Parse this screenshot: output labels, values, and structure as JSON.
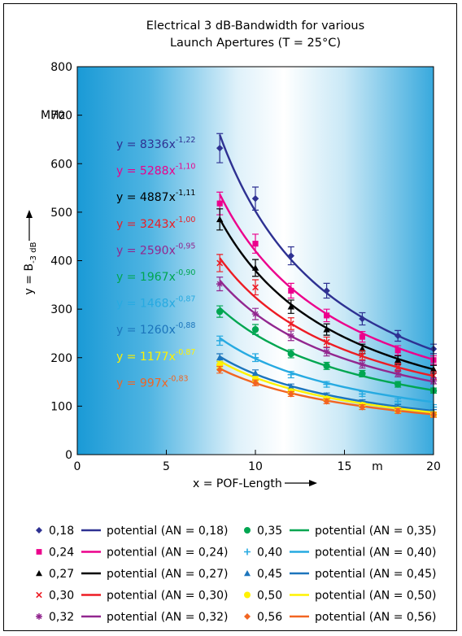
{
  "chart_data": {
    "type": "line",
    "title_line1": "Electrical 3 dB-Bandwidth for various",
    "title_line2": "Launch Apertures (T = 25°C)",
    "xlabel": "x = POF-Length",
    "ylabel_main": "y = B",
    "ylabel_sub": "-3 dB",
    "yunit": "MHz",
    "xunit": "m",
    "xlim": [
      0,
      20
    ],
    "ylim": [
      0,
      800
    ],
    "xticks": [
      "0",
      "5",
      "10",
      "15",
      "20"
    ],
    "yticks": [
      "0",
      "100",
      "200",
      "300",
      "400",
      "500",
      "600",
      "700",
      "800"
    ],
    "x": [
      8,
      10,
      12,
      14,
      16,
      18,
      20
    ],
    "legend_word": "potential",
    "series": [
      {
        "name": "0,18",
        "fit_label": "potential (AN = 0,18)",
        "coef": "8336",
        "exp": "-1,22",
        "color": "#2e3192",
        "marker": "diamond",
        "values": [
          632,
          528,
          410,
          338,
          280,
          245,
          218
        ]
      },
      {
        "name": "0,24",
        "fit_label": "potential (AN = 0,24)",
        "coef": "5288",
        "exp": "-1,10",
        "color": "#ec008c",
        "marker": "square",
        "values": [
          518,
          435,
          338,
          287,
          243,
          215,
          195
        ]
      },
      {
        "name": "0,27",
        "fit_label": "potential (AN = 0,27)",
        "coef": "4887",
        "exp": "-1,11",
        "color": "#000000",
        "marker": "triangle",
        "values": [
          485,
          385,
          305,
          258,
          218,
          195,
          176
        ]
      },
      {
        "name": "0,30",
        "fit_label": "potential (AN = 0,30)",
        "coef": "3243",
        "exp": "-1,00",
        "color": "#ed1c24",
        "marker": "cross",
        "values": [
          395,
          345,
          270,
          232,
          205,
          180,
          163
        ]
      },
      {
        "name": "0,32",
        "fit_label": "potential (AN = 0,32)",
        "coef": "2590",
        "exp": "-0,95",
        "color": "#92278f",
        "marker": "star",
        "values": [
          352,
          290,
          245,
          212,
          186,
          167,
          152
        ]
      },
      {
        "name": "0,35",
        "fit_label": "potential (AN = 0,35)",
        "coef": "1967",
        "exp": "-0,90",
        "color": "#00a651",
        "marker": "circle",
        "values": [
          295,
          258,
          208,
          183,
          167,
          145,
          132
        ]
      },
      {
        "name": "0,40",
        "fit_label": "potential (AN = 0,40)",
        "coef": "1468",
        "exp": "-0,87",
        "color": "#27aae1",
        "marker": "plus",
        "values": [
          235,
          200,
          165,
          145,
          125,
          110,
          98
        ]
      },
      {
        "name": "0,45",
        "fit_label": "potential (AN = 0,45)",
        "coef": "1260",
        "exp": "-0,88",
        "color": "#1c75bc",
        "marker": "triangle",
        "values": [
          200,
          168,
          140,
          122,
          108,
          98,
          88
        ]
      },
      {
        "name": "0,50",
        "fit_label": "potential (AN = 0,50)",
        "coef": "1177",
        "exp": "-0,87",
        "color": "#fff200",
        "marker": "circle",
        "values": [
          185,
          155,
          130,
          115,
          102,
          92,
          83
        ]
      },
      {
        "name": "0,56",
        "fit_label": "potential (AN = 0,56)",
        "coef": "997",
        "exp": "-0,83",
        "color": "#f26522",
        "marker": "diamond",
        "values": [
          175,
          148,
          125,
          110,
          98,
          90,
          82
        ]
      }
    ]
  }
}
